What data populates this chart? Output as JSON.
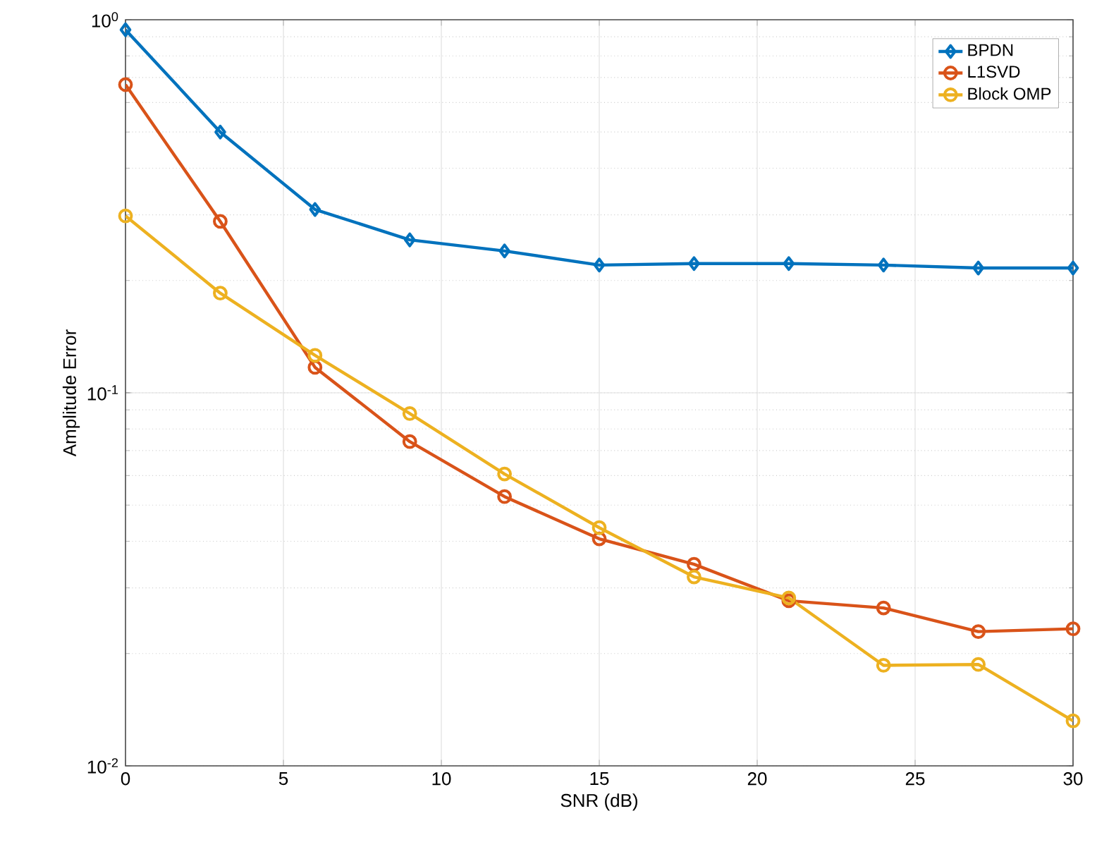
{
  "chart_data": {
    "type": "line",
    "xlabel": "SNR (dB)",
    "ylabel": "Amplitude Error",
    "x": [
      0,
      3,
      6,
      9,
      12,
      15,
      18,
      21,
      24,
      27,
      30
    ],
    "series": [
      {
        "name": "BPDN",
        "color": "#0072bd",
        "marker": "diamond",
        "values": [
          0.94,
          0.5,
          0.31,
          0.257,
          0.24,
          0.22,
          0.222,
          0.222,
          0.22,
          0.216,
          0.216
        ]
      },
      {
        "name": "L1SVD",
        "color": "#d95319",
        "marker": "circle",
        "values": [
          0.67,
          0.288,
          0.117,
          0.074,
          0.0527,
          0.0406,
          0.0347,
          0.0277,
          0.0265,
          0.0229,
          0.0233
        ]
      },
      {
        "name": "Block OMP",
        "color": "#edb120",
        "marker": "circle",
        "values": [
          0.298,
          0.185,
          0.126,
          0.088,
          0.0606,
          0.0435,
          0.0321,
          0.0282,
          0.0186,
          0.0187,
          0.0132
        ]
      }
    ],
    "xlim": [
      0,
      30
    ],
    "xticks": [
      0,
      5,
      10,
      15,
      20,
      25,
      30
    ],
    "ylim": [
      0.01,
      1
    ],
    "yticks": [
      {
        "value": 0.01,
        "label": "10$^{-2}$"
      },
      {
        "value": 0.1,
        "label": "10$^{-1}$"
      },
      {
        "value": 1,
        "label": "10$^{0}$"
      }
    ],
    "log": "y",
    "grid": true,
    "legend": "top right",
    "line_style": "solid"
  }
}
